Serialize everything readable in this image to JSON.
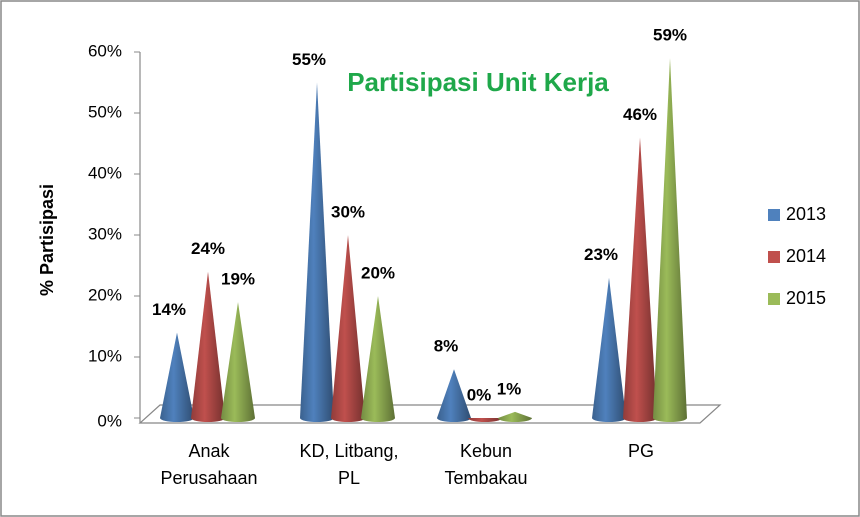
{
  "chart_data": {
    "type": "cone3d",
    "title": "Partisipasi Unit Kerja",
    "y_label": "% Partisipasi",
    "categories": [
      "Anak Perusahaan",
      "KD, Litbang, PL",
      "Kebun Tembakau",
      "PG"
    ],
    "series": [
      {
        "name": "2013",
        "color": "#4f81bd",
        "values": [
          14,
          55,
          8,
          23
        ],
        "value_labels": [
          "14%",
          "55%",
          "8%",
          "23%"
        ]
      },
      {
        "name": "2014",
        "color": "#c0504d",
        "values": [
          24,
          30,
          0,
          46
        ],
        "value_labels": [
          "24%",
          "30%",
          "0%",
          "46%"
        ]
      },
      {
        "name": "2015",
        "color": "#9bbb59",
        "values": [
          19,
          20,
          1,
          59
        ],
        "value_labels": [
          "19%",
          "20%",
          "1%",
          "59%"
        ]
      }
    ],
    "ylim": [
      0,
      60
    ],
    "yticks": [
      {
        "value": 0,
        "label": "0%"
      },
      {
        "value": 10,
        "label": "10%"
      },
      {
        "value": 20,
        "label": "20%"
      },
      {
        "value": 30,
        "label": "30%"
      },
      {
        "value": 40,
        "label": "40%"
      },
      {
        "value": 50,
        "label": "50%"
      },
      {
        "value": 60,
        "label": "60%"
      }
    ],
    "legend": "right"
  }
}
